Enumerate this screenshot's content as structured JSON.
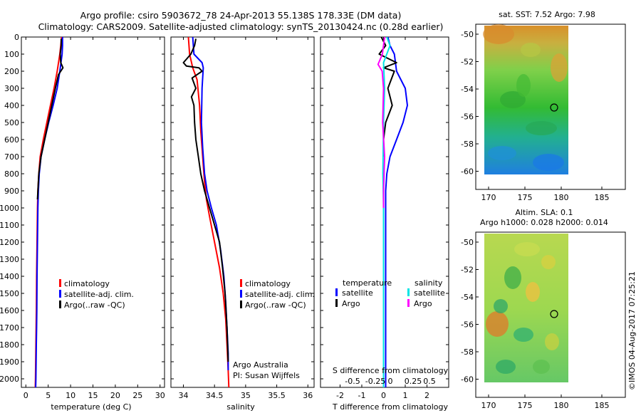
{
  "header": {
    "line1": "Argo profile: csiro 5903672_78 24-Apr-2013 55.138S 178.33E (DM data)",
    "line2": "Climatology: CARS2009. Satellite-adjusted climatology: synTS_20130424.nc (0.28d earlier)"
  },
  "colors": {
    "climatology": "#ff0000",
    "satellite": "#0000ff",
    "argo": "#000000",
    "salinity_satellite": "#00e5e5",
    "salinity_argo": "#ff00ff"
  },
  "depth_axis": {
    "ticks": [
      "0",
      "100",
      "200",
      "300",
      "400",
      "500",
      "600",
      "700",
      "800",
      "900",
      "1000",
      "1100",
      "1200",
      "1300",
      "1400",
      "1500",
      "1600",
      "1700",
      "1800",
      "1900",
      "2000"
    ],
    "ylim": [
      0,
      2050
    ],
    "inverted": true
  },
  "legend": {
    "climatology": "climatology",
    "satellite_adj": "satellite-adj. clim.",
    "argo": "Argo(..raw -QC)",
    "temperature": "temperature",
    "salinity": "salinity",
    "satellite": "satellite",
    "argo_short": "Argo"
  },
  "annotations": {
    "argo_australia": "Argo Australia",
    "pi": "PI: Susan Wijffels",
    "s_diff_label": "S difference from climatology",
    "s_diff_ticks": [
      "-0.5",
      "-0.25",
      "0",
      "0.25",
      "0.5"
    ],
    "sst": "sat. SST: 7.52 Argo: 7.98",
    "sla_line1": "Altim. SLA: 0.1",
    "sla_line2": "Argo h1000: 0.028 h2000: 0.014",
    "credit": "©IMOS 04-Aug-2017 07:25:21"
  },
  "chart_data": [
    {
      "type": "line",
      "xlabel": "temperature (deg C)",
      "ylabel": "",
      "xlim": [
        -1,
        31
      ],
      "xticks": [
        "0",
        "5",
        "10",
        "15",
        "20",
        "25",
        "30"
      ],
      "series": [
        {
          "name": "climatology",
          "color": "#ff0000",
          "x": [
            8.0,
            7.8,
            7.6,
            7.0,
            6.3,
            5.5,
            4.7,
            3.9,
            3.2,
            2.9,
            2.7,
            2.6,
            2.5,
            2.4,
            2.35,
            2.3,
            2.25,
            2.2,
            2.15,
            2.1
          ],
          "y": [
            0,
            50,
            100,
            200,
            300,
            400,
            500,
            600,
            700,
            800,
            900,
            1000,
            1200,
            1400,
            1600,
            1700,
            1800,
            1900,
            2000,
            2050
          ]
        },
        {
          "name": "satellite-adj. clim.",
          "color": "#0000ff",
          "x": [
            8.2,
            8.2,
            8.1,
            7.6,
            7.0,
            6.1,
            5.1,
            4.2,
            3.4,
            3.0,
            2.8,
            2.7,
            2.6,
            2.5,
            2.45,
            2.4,
            2.35,
            2.3,
            2.25,
            2.2
          ],
          "y": [
            0,
            50,
            100,
            200,
            300,
            400,
            500,
            600,
            700,
            800,
            900,
            1000,
            1200,
            1400,
            1600,
            1700,
            1800,
            1900,
            2000,
            2050
          ]
        },
        {
          "name": "Argo(..raw -QC)",
          "color": "#000000",
          "x": [
            7.9,
            7.9,
            7.7,
            7.8,
            8.3,
            7.3,
            6.6,
            5.8,
            5.0,
            4.2,
            3.4,
            2.9,
            2.6
          ],
          "y": [
            10,
            50,
            100,
            150,
            180,
            220,
            300,
            400,
            500,
            600,
            700,
            800,
            950
          ]
        }
      ]
    },
    {
      "type": "line",
      "xlabel": "salinity",
      "ylabel": "",
      "xlim": [
        33.8,
        36.1
      ],
      "xticks": [
        "34",
        "34.5",
        "35",
        "35.5",
        "36"
      ],
      "series": [
        {
          "name": "climatology",
          "color": "#ff0000",
          "x": [
            34.08,
            34.1,
            34.15,
            34.22,
            34.26,
            34.28,
            34.3,
            34.32,
            34.34,
            34.37,
            34.42,
            34.5,
            34.58,
            34.64,
            34.68,
            34.7,
            34.72,
            34.73
          ],
          "y": [
            0,
            100,
            180,
            250,
            400,
            550,
            650,
            750,
            850,
            950,
            1050,
            1200,
            1350,
            1500,
            1650,
            1800,
            1950,
            2050
          ]
        },
        {
          "name": "satellite-adj. clim.",
          "color": "#0000ff",
          "x": [
            34.15,
            34.17,
            34.3,
            34.32,
            34.3,
            34.29,
            34.31,
            34.34,
            34.38,
            34.45,
            34.53,
            34.6,
            34.65,
            34.68,
            34.7,
            34.72,
            34.72
          ],
          "y": [
            0,
            100,
            150,
            180,
            300,
            500,
            650,
            800,
            900,
            1000,
            1100,
            1250,
            1400,
            1550,
            1700,
            1850,
            1950
          ]
        },
        {
          "name": "Argo(..raw -QC)",
          "color": "#000000",
          "x": [
            34.2,
            34.18,
            34.12,
            34.0,
            34.05,
            34.25,
            34.3,
            34.14,
            34.2,
            34.13,
            34.17,
            34.18,
            34.2,
            34.24,
            34.28,
            34.34,
            34.42,
            34.5,
            34.58,
            34.63,
            34.67,
            34.7,
            34.72
          ],
          "y": [
            10,
            50,
            100,
            150,
            170,
            180,
            200,
            240,
            300,
            350,
            400,
            500,
            600,
            700,
            800,
            900,
            1000,
            1100,
            1200,
            1350,
            1500,
            1700,
            1900
          ]
        }
      ]
    },
    {
      "type": "line",
      "xlabel": "T difference from climatology",
      "ylabel": "",
      "xlim": [
        -2.9,
        3.0
      ],
      "xticks": [
        "-2",
        "-1",
        "0",
        "1",
        "2"
      ],
      "series": [
        {
          "name": "temperature satellite",
          "color": "#0000ff",
          "x": [
            0.2,
            0.3,
            0.5,
            0.6,
            1.0,
            1.1,
            0.9,
            0.6,
            0.3,
            0.15,
            0.1,
            0.1,
            0.1,
            0.1,
            0.1,
            0.1
          ],
          "y": [
            0,
            50,
            100,
            200,
            300,
            400,
            500,
            600,
            700,
            800,
            900,
            1000,
            1200,
            1500,
            1800,
            2050
          ]
        },
        {
          "name": "temperature Argo",
          "color": "#000000",
          "x": [
            -0.1,
            0.1,
            -0.2,
            0.6,
            0.0,
            0.5,
            0.2,
            0.4,
            0.1,
            0.0,
            0.0
          ],
          "y": [
            0,
            50,
            100,
            150,
            180,
            200,
            300,
            400,
            500,
            600,
            700
          ]
        },
        {
          "name": "salinity satellite",
          "color": "#00e5e5",
          "x": [
            0.15,
            0.3,
            0.0,
            0.05,
            0.0,
            -0.03,
            0.0,
            0.0,
            0.0,
            0.0
          ],
          "y": [
            0,
            50,
            150,
            300,
            500,
            800,
            1000,
            1300,
            1700,
            2050
          ]
        },
        {
          "name": "salinity Argo",
          "color": "#ff00ff",
          "x": [
            0.05,
            -0.05,
            -0.25,
            -0.06,
            0.0,
            -0.04,
            0.05,
            0.0,
            0.0
          ],
          "y": [
            0,
            100,
            160,
            200,
            300,
            500,
            700,
            900,
            1000
          ]
        }
      ]
    },
    {
      "type": "heatmap",
      "title": "sat. SST: 7.52 Argo: 7.98",
      "xticks": [
        "170",
        "175",
        "180",
        "185"
      ],
      "yticks": [
        "-50",
        "-52",
        "-54",
        "-56",
        "-58",
        "-60"
      ],
      "marker": {
        "lon": 178.33,
        "lat": -55.138
      }
    },
    {
      "type": "heatmap",
      "title": "Altim. SLA: 0.1",
      "xticks": [
        "170",
        "175",
        "180",
        "185"
      ],
      "yticks": [
        "-50",
        "-52",
        "-54",
        "-56",
        "-58",
        "-60"
      ],
      "marker": {
        "lon": 178.33,
        "lat": -55.138
      }
    }
  ]
}
